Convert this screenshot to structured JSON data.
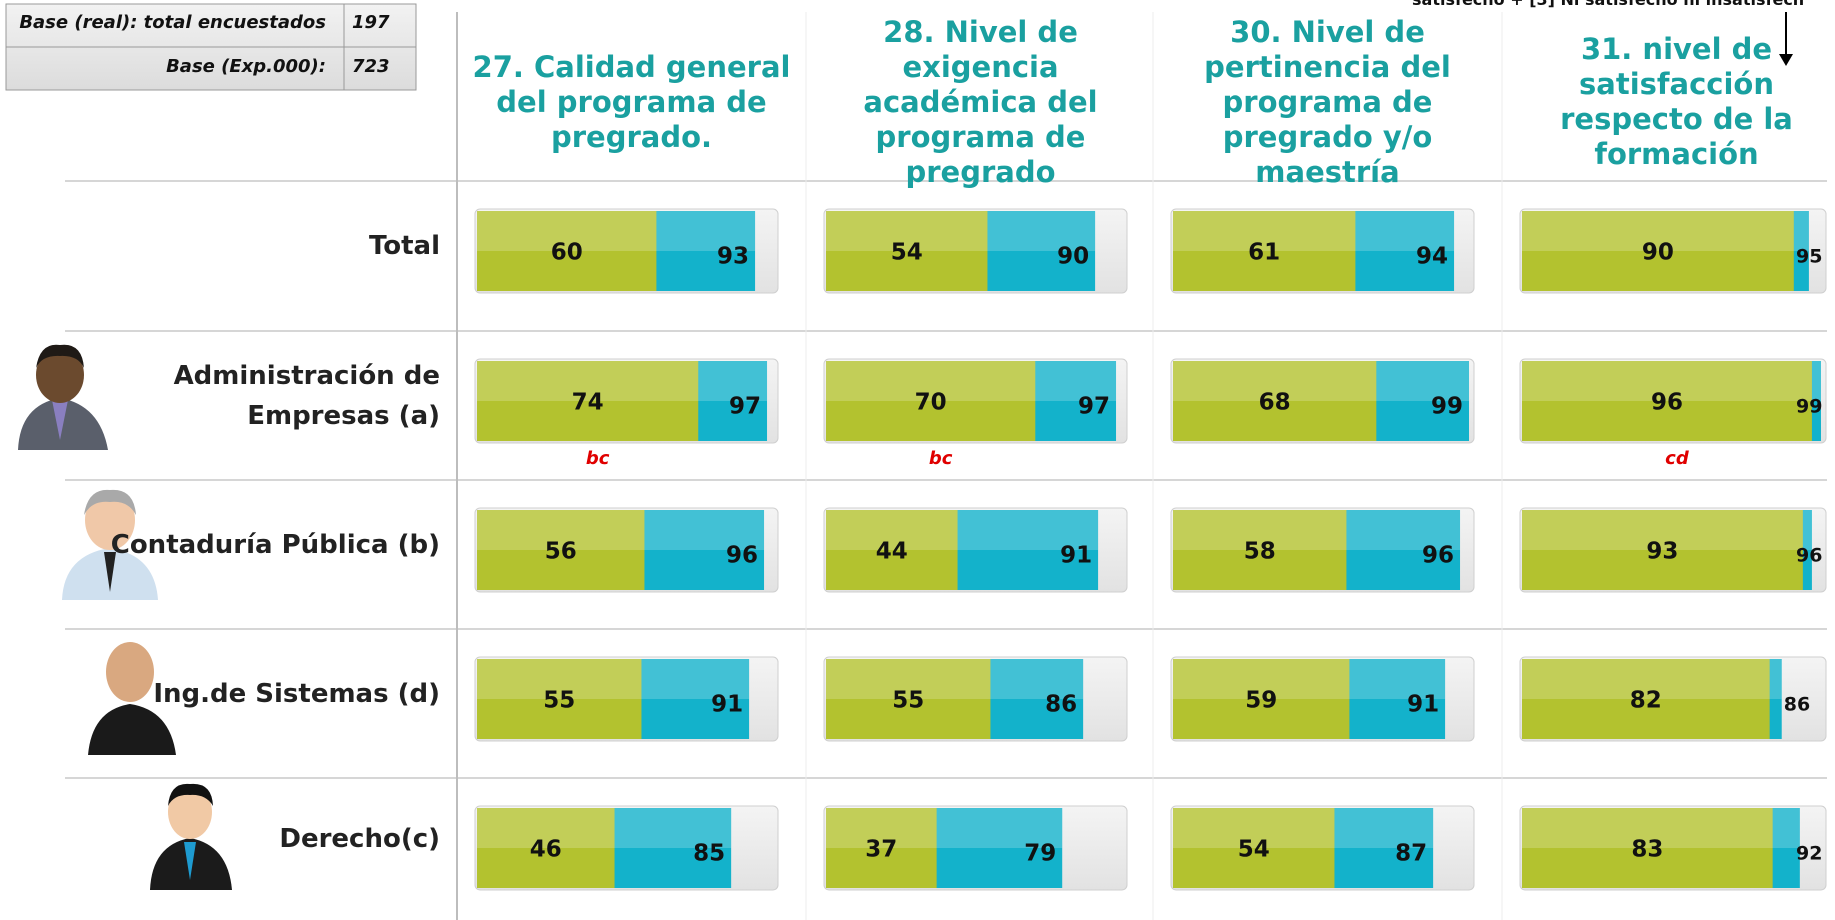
{
  "base_table": {
    "rows": [
      {
        "label": "Base (real): total encuestados",
        "value": 197
      },
      {
        "label": "Base (Exp.000):",
        "value": 723
      }
    ]
  },
  "top_note": "satisfecho + [3] Ni satisfecho ni insatisfech",
  "row_labels": [
    "Total",
    "Administración de Empresas (a)",
    "Contaduría Pública (b)",
    "Ing.de Sistemas (d)",
    "Derecho(c)"
  ],
  "chart_data": [
    {
      "type": "bar",
      "title": "27. Calidad general del programa de pregrado.",
      "xlim": [
        0,
        100
      ],
      "series": [
        {
          "color": "#b3c22f",
          "values": [
            60,
            74,
            56,
            55,
            46
          ]
        },
        {
          "color": "#13b2cb",
          "values": [
            93,
            97,
            96,
            91,
            85
          ]
        }
      ],
      "annotations": [
        null,
        "bc",
        null,
        null,
        null
      ]
    },
    {
      "type": "bar",
      "title": "28. Nivel de exigencia académica del programa de pregrado",
      "xlim": [
        0,
        100
      ],
      "series": [
        {
          "color": "#b3c22f",
          "values": [
            54,
            70,
            44,
            55,
            37
          ]
        },
        {
          "color": "#13b2cb",
          "values": [
            90,
            97,
            91,
            86,
            79
          ]
        }
      ],
      "annotations": [
        null,
        "bc",
        null,
        null,
        null
      ]
    },
    {
      "type": "bar",
      "title": "30. Nivel de pertinencia del programa de pregrado y/o maestría",
      "xlim": [
        0,
        100
      ],
      "series": [
        {
          "color": "#b3c22f",
          "values": [
            61,
            68,
            58,
            59,
            54
          ]
        },
        {
          "color": "#13b2cb",
          "values": [
            94,
            99,
            96,
            91,
            87
          ]
        }
      ],
      "annotations": [
        null,
        null,
        null,
        null,
        null
      ]
    },
    {
      "type": "bar",
      "title": "31. nivel de satisfacción respecto de la formación",
      "xlim": [
        0,
        100
      ],
      "series": [
        {
          "color": "#b3c22f",
          "values": [
            90,
            96,
            93,
            82,
            83
          ]
        },
        {
          "color": "#13b2cb",
          "values": [
            95,
            99,
            96,
            86,
            92
          ]
        }
      ],
      "annotations": [
        null,
        "cd",
        null,
        null,
        null
      ]
    }
  ]
}
